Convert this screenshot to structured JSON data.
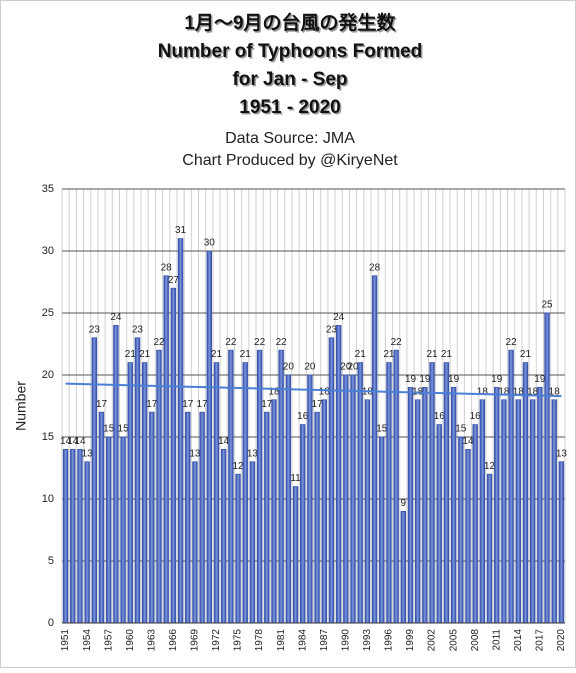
{
  "chart_data": {
    "type": "bar",
    "title": [
      "1月～9月の台風の発生数",
      "Number of Typhoons Formed",
      "for Jan - Sep",
      "1951 - 2020"
    ],
    "subtitle": [
      "Data Source: JMA",
      "Chart Produced by @KiryeNet"
    ],
    "y_label": "Number",
    "categories": [
      "1951",
      null,
      null,
      "1954",
      null,
      null,
      "1957",
      null,
      null,
      "1960",
      null,
      null,
      "1963",
      null,
      null,
      "1966",
      null,
      null,
      "1969",
      null,
      null,
      "1972",
      null,
      null,
      "1975",
      null,
      null,
      "1978",
      null,
      null,
      "1981",
      null,
      null,
      "1984",
      null,
      null,
      "1987",
      null,
      null,
      "1990",
      null,
      null,
      "1993",
      null,
      null,
      "1996",
      null,
      null,
      "1999",
      null,
      null,
      "2002",
      null,
      null,
      "2005",
      null,
      null,
      "2008",
      null,
      null,
      "2011",
      null,
      null,
      "2014",
      null,
      null,
      "2017",
      null,
      null,
      "2020"
    ],
    "values": [
      14,
      14,
      14,
      13,
      23,
      17,
      15,
      24,
      15,
      21,
      23,
      21,
      17,
      22,
      28,
      27,
      31,
      17,
      13,
      17,
      30,
      21,
      14,
      22,
      12,
      21,
      13,
      22,
      17,
      18,
      22,
      20,
      11,
      16,
      20,
      17,
      18,
      23,
      24,
      20,
      20,
      21,
      18,
      28,
      15,
      21,
      22,
      9,
      19,
      18,
      19,
      21,
      16,
      21,
      19,
      15,
      14,
      16,
      18,
      12,
      19,
      18,
      22,
      18,
      21,
      18,
      19,
      25,
      18,
      13
    ],
    "color": "#3a56b0",
    "trendline": {
      "color": "#4a7fd4",
      "values": [
        19.3,
        18.3
      ]
    },
    "ylim": [
      0,
      35
    ],
    "yticks": [
      0,
      5,
      10,
      15,
      20,
      25,
      30,
      35
    ],
    "grid": true
  }
}
